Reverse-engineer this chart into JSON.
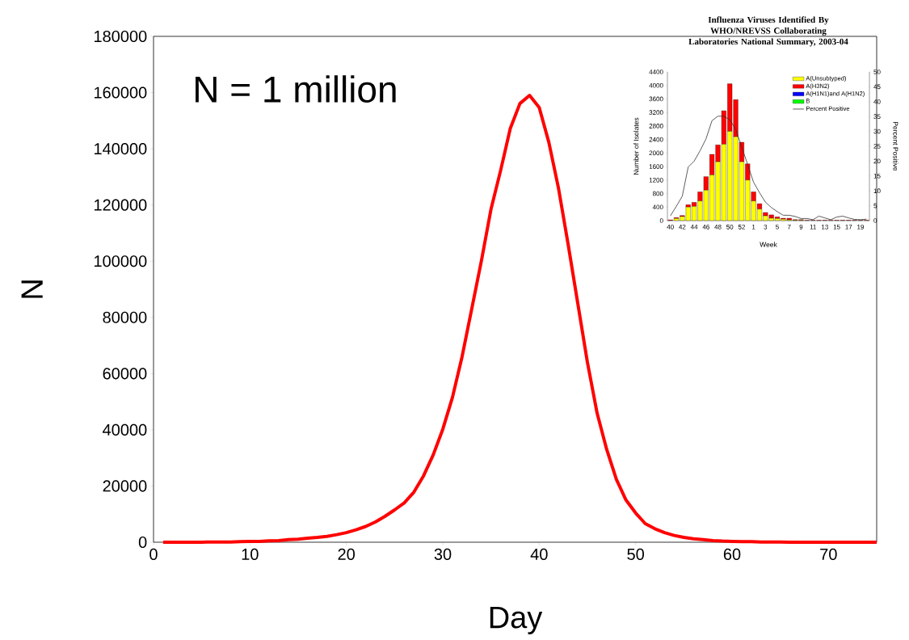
{
  "chart_data": [
    {
      "type": "line",
      "xlabel": "Day",
      "ylabel": "N",
      "annotations": [
        "N = 1 million"
      ],
      "x": [
        1,
        2,
        3,
        4,
        5,
        6,
        7,
        8,
        9,
        10,
        11,
        12,
        13,
        14,
        15,
        16,
        17,
        18,
        19,
        20,
        21,
        22,
        23,
        24,
        25,
        26,
        27,
        28,
        29,
        30,
        31,
        32,
        33,
        34,
        35,
        36,
        37,
        38,
        39,
        40,
        41,
        42,
        43,
        44,
        45,
        46,
        47,
        48,
        49,
        50,
        51,
        52,
        53,
        54,
        55,
        56,
        57,
        58,
        59,
        60,
        61,
        62,
        63,
        64,
        65,
        66,
        67,
        68,
        69,
        70,
        71,
        72,
        73,
        74,
        75
      ],
      "values": [
        0,
        0,
        0,
        0,
        0,
        100,
        100,
        100,
        200,
        300,
        300,
        500,
        600,
        900,
        1100,
        1400,
        1700,
        2100,
        2700,
        3400,
        4400,
        5600,
        7200,
        9200,
        11500,
        14000,
        17800,
        23600,
        31000,
        40200,
        51500,
        66000,
        83000,
        100000,
        118500,
        132300,
        147200,
        156100,
        159000,
        154700,
        142300,
        126000,
        106000,
        85000,
        64000,
        46000,
        33000,
        22400,
        15000,
        10400,
        6600,
        4800,
        3400,
        2400,
        1700,
        1200,
        900,
        600,
        400,
        300,
        200,
        200,
        100,
        100,
        100,
        0,
        0,
        0,
        0,
        0,
        0,
        0,
        0,
        0,
        0
      ],
      "color": "#ff0000",
      "line_style": "solid",
      "xlim": [
        0,
        75
      ],
      "ylim": [
        0,
        180000
      ],
      "xticks": [
        0,
        10,
        20,
        30,
        40,
        50,
        60,
        70
      ],
      "yticks": [
        0,
        20000,
        40000,
        60000,
        80000,
        100000,
        120000,
        140000,
        160000,
        180000
      ]
    },
    {
      "type": "bar",
      "stacked": true,
      "title": "Influenza Viruses Identified By WHO/NREVSS Collaborating Laboratories National Summary, 2003-04",
      "xlabel": "Week",
      "ylabel": "Number of Isolates",
      "y2label": "Percent Positive",
      "categories": [
        "40",
        null,
        "42",
        null,
        "44",
        null,
        "46",
        null,
        "48",
        null,
        "50",
        null,
        "52",
        null,
        "1",
        null,
        "3",
        null,
        "5",
        null,
        "7",
        null,
        "9",
        null,
        "11",
        null,
        "13",
        null,
        "15",
        null,
        "17",
        null,
        "19",
        null
      ],
      "series": [
        {
          "name": "A(Unsubtyped)",
          "color": "#ffff00",
          "values": [
            0,
            60,
            120,
            400,
            420,
            580,
            900,
            1350,
            1740,
            2260,
            2640,
            2480,
            1740,
            1200,
            580,
            340,
            140,
            70,
            60,
            40,
            20,
            10,
            10,
            0,
            0,
            0,
            0,
            0,
            0,
            0,
            0,
            0,
            0,
            0
          ]
        },
        {
          "name": "A(H3N2)",
          "color": "#ff0000",
          "values": [
            20,
            30,
            30,
            70,
            120,
            270,
            400,
            610,
            500,
            990,
            1410,
            1100,
            580,
            480,
            270,
            160,
            100,
            100,
            50,
            30,
            50,
            20,
            20,
            10,
            10,
            10,
            10,
            10,
            10,
            10,
            10,
            10,
            10,
            10
          ]
        },
        {
          "name": "A(H1N1)and A(H1N2)",
          "color": "#0000ff",
          "values": [
            0,
            0,
            0,
            0,
            0,
            0,
            0,
            0,
            0,
            0,
            0,
            0,
            0,
            0,
            0,
            0,
            0,
            0,
            0,
            0,
            0,
            0,
            0,
            0,
            0,
            0,
            0,
            0,
            0,
            0,
            0,
            0,
            0,
            0
          ]
        },
        {
          "name": "B",
          "color": "#00ff00",
          "values": [
            0,
            0,
            0,
            0,
            0,
            0,
            0,
            0,
            0,
            0,
            0,
            0,
            0,
            0,
            0,
            0,
            0,
            0,
            0,
            0,
            0,
            0,
            0,
            0,
            0,
            0,
            0,
            0,
            0,
            0,
            0,
            0,
            0,
            0
          ]
        },
        {
          "name": "Percent Positive",
          "type": "line",
          "axis": "y2",
          "color": "#333333",
          "values": [
            1.6,
            4.8,
            8.2,
            18,
            20,
            23.5,
            27.5,
            33.6,
            35.1,
            35.1,
            33.9,
            30.7,
            24.8,
            18.9,
            12.9,
            9.4,
            6.2,
            4.4,
            3.0,
            1.8,
            1.8,
            1.4,
            0.7,
            0.7,
            0.3,
            1.5,
            0.9,
            0.3,
            1.2,
            1.5,
            0.9,
            0.4,
            0.3,
            0.5
          ]
        }
      ],
      "ylim": [
        0,
        4400
      ],
      "yticks": [
        0,
        400,
        800,
        1200,
        1600,
        2000,
        2400,
        2800,
        3200,
        3600,
        4000,
        4400
      ],
      "y2lim": [
        0,
        50
      ],
      "y2ticks": [
        0,
        5,
        10,
        15,
        20,
        25,
        30,
        35,
        40,
        45,
        50
      ],
      "legend": "top right"
    }
  ]
}
